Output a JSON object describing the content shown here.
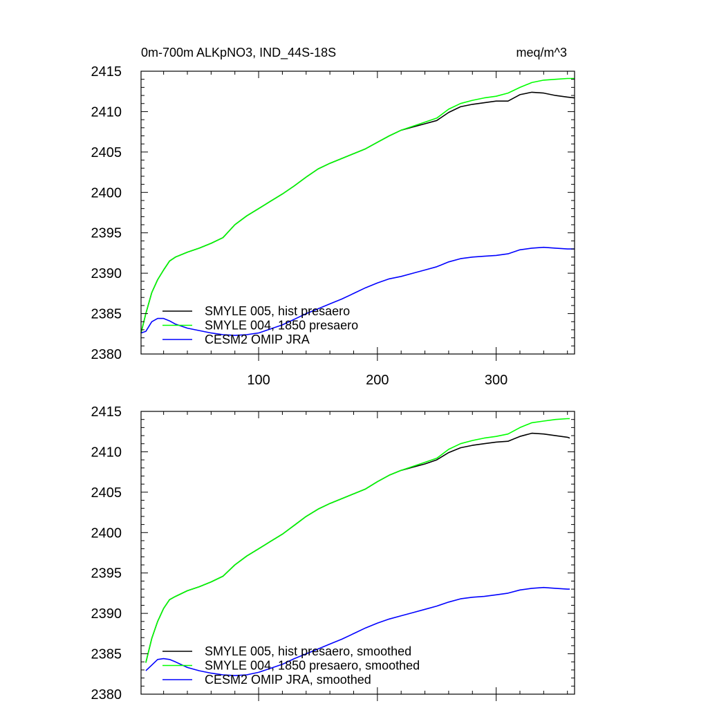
{
  "chart_data": [
    {
      "type": "line",
      "title_left": "0m-700m ALKpNO3, IND_44S-18S",
      "title_right": "meq/m^3",
      "xlim": [
        1,
        366
      ],
      "ylim": [
        2380,
        2415
      ],
      "yticks": [
        2380,
        2385,
        2390,
        2395,
        2400,
        2405,
        2410,
        2415
      ],
      "xticks": [
        100,
        200,
        300
      ],
      "xtick_labels": [
        "100",
        "200",
        "300"
      ],
      "ytick_labels": [
        "2380",
        "2385",
        "2390",
        "2395",
        "2400",
        "2405",
        "2410",
        "2415"
      ],
      "series": [
        {
          "name": "SMYLE 005, hist presaero",
          "color": "#000000",
          "x": [
            1,
            5,
            10,
            15,
            20,
            25,
            30,
            40,
            50,
            60,
            70,
            80,
            90,
            100,
            110,
            120,
            130,
            140,
            150,
            160,
            170,
            180,
            190,
            200,
            210,
            220,
            230,
            240,
            250,
            260,
            270,
            280,
            290,
            300,
            310,
            320,
            330,
            340,
            350,
            360,
            366
          ],
          "values": [
            2382.6,
            2385.0,
            2387.6,
            2389.2,
            2390.4,
            2391.5,
            2392.0,
            2392.6,
            2393.1,
            2393.7,
            2394.4,
            2396.0,
            2397.1,
            2398.0,
            2398.9,
            2399.8,
            2400.8,
            2401.9,
            2402.9,
            2403.6,
            2404.2,
            2404.8,
            2405.4,
            2406.2,
            2407.0,
            2407.7,
            2408.1,
            2408.5,
            2408.9,
            2409.9,
            2410.6,
            2410.9,
            2411.1,
            2411.3,
            2411.3,
            2412.1,
            2412.4,
            2412.3,
            2412.0,
            2411.8,
            2411.7
          ]
        },
        {
          "name": "SMYLE 004, 1850 presaero",
          "color": "#00ff00",
          "x": [
            1,
            5,
            10,
            15,
            20,
            25,
            30,
            40,
            50,
            60,
            70,
            80,
            90,
            100,
            110,
            120,
            130,
            140,
            150,
            160,
            170,
            180,
            190,
            200,
            210,
            220,
            230,
            240,
            250,
            260,
            270,
            280,
            290,
            300,
            310,
            320,
            330,
            340,
            350,
            360,
            366
          ],
          "values": [
            2382.6,
            2385.0,
            2387.6,
            2389.2,
            2390.4,
            2391.5,
            2392.0,
            2392.6,
            2393.1,
            2393.7,
            2394.4,
            2396.0,
            2397.1,
            2398.0,
            2398.9,
            2399.8,
            2400.8,
            2401.9,
            2402.9,
            2403.6,
            2404.2,
            2404.8,
            2405.4,
            2406.2,
            2407.0,
            2407.7,
            2408.2,
            2408.7,
            2409.2,
            2410.3,
            2411.0,
            2411.4,
            2411.7,
            2411.9,
            2412.3,
            2413.0,
            2413.6,
            2413.9,
            2414.0,
            2414.1,
            2414.1
          ]
        },
        {
          "name": "CESM2 OMIP JRA",
          "color": "#0000ff",
          "x": [
            1,
            5,
            10,
            15,
            20,
            25,
            30,
            40,
            50,
            60,
            70,
            80,
            90,
            100,
            110,
            120,
            130,
            140,
            150,
            160,
            170,
            180,
            190,
            200,
            210,
            220,
            230,
            240,
            250,
            260,
            270,
            280,
            290,
            300,
            310,
            320,
            330,
            340,
            350,
            360,
            366
          ],
          "values": [
            2382.6,
            2382.8,
            2384.0,
            2384.4,
            2384.4,
            2384.1,
            2383.7,
            2383.2,
            2382.9,
            2382.6,
            2382.4,
            2382.3,
            2382.4,
            2382.6,
            2383.1,
            2383.6,
            2384.3,
            2385.0,
            2385.6,
            2386.2,
            2386.8,
            2387.5,
            2388.2,
            2388.8,
            2389.3,
            2389.6,
            2390.0,
            2390.4,
            2390.8,
            2391.4,
            2391.8,
            2392.0,
            2392.1,
            2392.2,
            2392.4,
            2392.9,
            2393.1,
            2393.2,
            2393.1,
            2393.0,
            2393.0
          ]
        }
      ]
    },
    {
      "type": "line",
      "xlim": [
        1,
        366
      ],
      "ylim": [
        2380,
        2415
      ],
      "yticks": [
        2380,
        2385,
        2390,
        2395,
        2400,
        2405,
        2410,
        2415
      ],
      "xticks": [
        100,
        200,
        300
      ],
      "ytick_labels": [
        "2380",
        "2385",
        "2390",
        "2395",
        "2400",
        "2405",
        "2410",
        "2415"
      ],
      "series": [
        {
          "name": "SMYLE 005, hist presaero, smoothed",
          "color": "#000000",
          "x": [
            5,
            10,
            15,
            20,
            25,
            30,
            40,
            50,
            60,
            70,
            80,
            90,
            100,
            110,
            120,
            130,
            140,
            150,
            160,
            170,
            180,
            190,
            200,
            210,
            220,
            230,
            240,
            250,
            260,
            270,
            280,
            290,
            300,
            310,
            320,
            330,
            340,
            350,
            360,
            362
          ],
          "values": [
            2383.9,
            2386.9,
            2389.0,
            2390.6,
            2391.7,
            2392.1,
            2392.8,
            2393.3,
            2393.9,
            2394.6,
            2396.0,
            2397.1,
            2398.0,
            2398.9,
            2399.8,
            2400.9,
            2402.0,
            2402.9,
            2403.6,
            2404.2,
            2404.8,
            2405.4,
            2406.3,
            2407.1,
            2407.7,
            2408.1,
            2408.5,
            2409.0,
            2409.9,
            2410.5,
            2410.8,
            2411.0,
            2411.2,
            2411.3,
            2411.9,
            2412.3,
            2412.2,
            2412.0,
            2411.8,
            2411.7
          ]
        },
        {
          "name": "SMYLE 004, 1850 presaero, smoothed",
          "color": "#00ff00",
          "x": [
            5,
            10,
            15,
            20,
            25,
            30,
            40,
            50,
            60,
            70,
            80,
            90,
            100,
            110,
            120,
            130,
            140,
            150,
            160,
            170,
            180,
            190,
            200,
            210,
            220,
            230,
            240,
            250,
            260,
            270,
            280,
            290,
            300,
            310,
            320,
            330,
            340,
            350,
            360,
            362
          ],
          "values": [
            2383.9,
            2386.9,
            2389.0,
            2390.6,
            2391.7,
            2392.1,
            2392.8,
            2393.3,
            2393.9,
            2394.6,
            2396.0,
            2397.1,
            2398.0,
            2398.9,
            2399.8,
            2400.9,
            2402.0,
            2402.9,
            2403.6,
            2404.2,
            2404.8,
            2405.4,
            2406.3,
            2407.1,
            2407.7,
            2408.2,
            2408.7,
            2409.2,
            2410.3,
            2411.0,
            2411.4,
            2411.7,
            2411.9,
            2412.2,
            2413.0,
            2413.6,
            2413.8,
            2414.0,
            2414.1,
            2414.1
          ]
        },
        {
          "name": "CESM2 OMIP JRA, smoothed",
          "color": "#0000ff",
          "x": [
            5,
            10,
            15,
            20,
            25,
            30,
            40,
            50,
            60,
            70,
            80,
            90,
            100,
            110,
            120,
            130,
            140,
            150,
            160,
            170,
            180,
            190,
            200,
            210,
            220,
            230,
            240,
            250,
            260,
            270,
            280,
            290,
            300,
            310,
            320,
            330,
            340,
            350,
            360,
            362
          ],
          "values": [
            2382.9,
            2383.6,
            2384.3,
            2384.4,
            2384.3,
            2384.0,
            2383.3,
            2382.9,
            2382.6,
            2382.4,
            2382.3,
            2382.4,
            2382.7,
            2383.2,
            2383.7,
            2384.4,
            2385.0,
            2385.6,
            2386.2,
            2386.8,
            2387.5,
            2388.2,
            2388.8,
            2389.3,
            2389.7,
            2390.1,
            2390.5,
            2390.9,
            2391.4,
            2391.8,
            2392.0,
            2392.1,
            2392.3,
            2392.5,
            2392.9,
            2393.1,
            2393.2,
            2393.1,
            2393.0,
            2393.0
          ]
        }
      ]
    }
  ]
}
